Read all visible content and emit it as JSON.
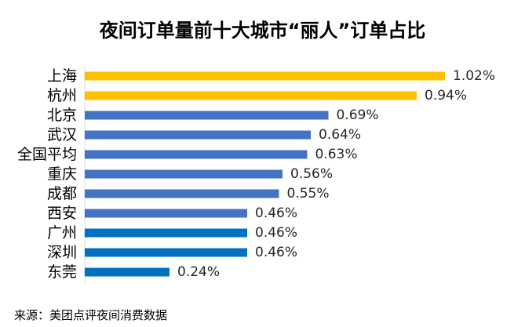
{
  "chart_data": {
    "type": "bar",
    "orientation": "horizontal",
    "title": "夜间订单量前十大城市“丽人”订单占比",
    "categories": [
      "上海",
      "杭州",
      "北京",
      "武汉",
      "全国平均",
      "重庆",
      "成都",
      "西安",
      "广州",
      "深圳",
      "东莞"
    ],
    "values": [
      1.02,
      0.94,
      0.69,
      0.64,
      0.63,
      0.56,
      0.55,
      0.46,
      0.46,
      0.46,
      0.24
    ],
    "labels": [
      "1.02%",
      "0.94%",
      "0.69%",
      "0.64%",
      "0.63%",
      "0.56%",
      "0.55%",
      "0.46%",
      "0.46%",
      "0.46%",
      "0.24%"
    ],
    "colors": [
      "#FFC000",
      "#FFC000",
      "#4472C4",
      "#4472C4",
      "#4472C4",
      "#4472C4",
      "#4472C4",
      "#4472C4",
      "#0070C0",
      "#0070C0",
      "#0070C0"
    ],
    "xlim": [
      0,
      1.2
    ],
    "grid": false,
    "legend": "none"
  },
  "source": "来源：美团点评夜间消费数据"
}
